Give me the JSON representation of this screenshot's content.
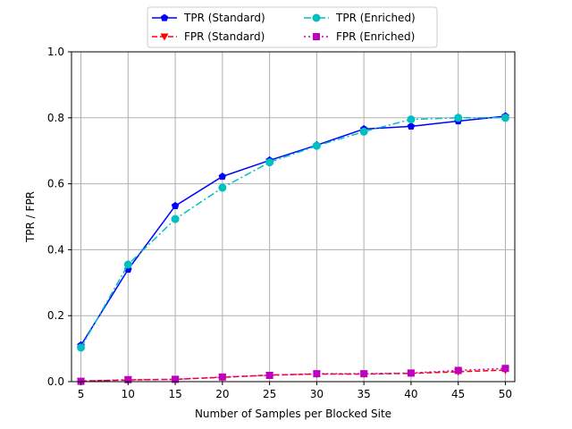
{
  "chart_data": {
    "type": "line",
    "xlabel": "Number of Samples per Blocked Site",
    "ylabel": "TPR / FPR",
    "x": [
      5,
      10,
      15,
      20,
      25,
      30,
      35,
      40,
      45,
      50
    ],
    "xlim": [
      4,
      51
    ],
    "ylim": [
      0,
      1.0
    ],
    "xticks": [
      5,
      10,
      15,
      20,
      25,
      30,
      35,
      40,
      45,
      50
    ],
    "yticks": [
      0.0,
      0.2,
      0.4,
      0.6,
      0.8,
      1.0
    ],
    "xtick_labels": [
      "5",
      "10",
      "15",
      "20",
      "25",
      "30",
      "35",
      "40",
      "45",
      "50"
    ],
    "ytick_labels": [
      "0.0",
      "0.2",
      "0.4",
      "0.6",
      "0.8",
      "1.0"
    ],
    "grid": true,
    "legend_position": "top-center",
    "series": [
      {
        "name": "TPR (Standard)",
        "color": "#0000ff",
        "linestyle": "solid",
        "marker": "pentagon",
        "values": [
          0.11,
          0.34,
          0.533,
          0.622,
          0.671,
          0.717,
          0.766,
          0.774,
          0.79,
          0.805
        ]
      },
      {
        "name": "FPR (Standard)",
        "color": "#ff0000",
        "linestyle": "dashed",
        "marker": "triangle-down",
        "values": [
          0.002,
          0.005,
          0.007,
          0.013,
          0.02,
          0.023,
          0.023,
          0.025,
          0.03,
          0.035
        ]
      },
      {
        "name": "TPR (Enriched)",
        "color": "#00bfbf",
        "linestyle": "dashdot",
        "marker": "circle",
        "values": [
          0.103,
          0.355,
          0.493,
          0.588,
          0.665,
          0.715,
          0.758,
          0.795,
          0.8,
          0.8
        ]
      },
      {
        "name": "FPR (Enriched)",
        "color": "#bf00bf",
        "linestyle": "dotted",
        "marker": "square",
        "values": [
          0.001,
          0.006,
          0.007,
          0.014,
          0.019,
          0.024,
          0.024,
          0.026,
          0.034,
          0.04
        ]
      }
    ]
  }
}
